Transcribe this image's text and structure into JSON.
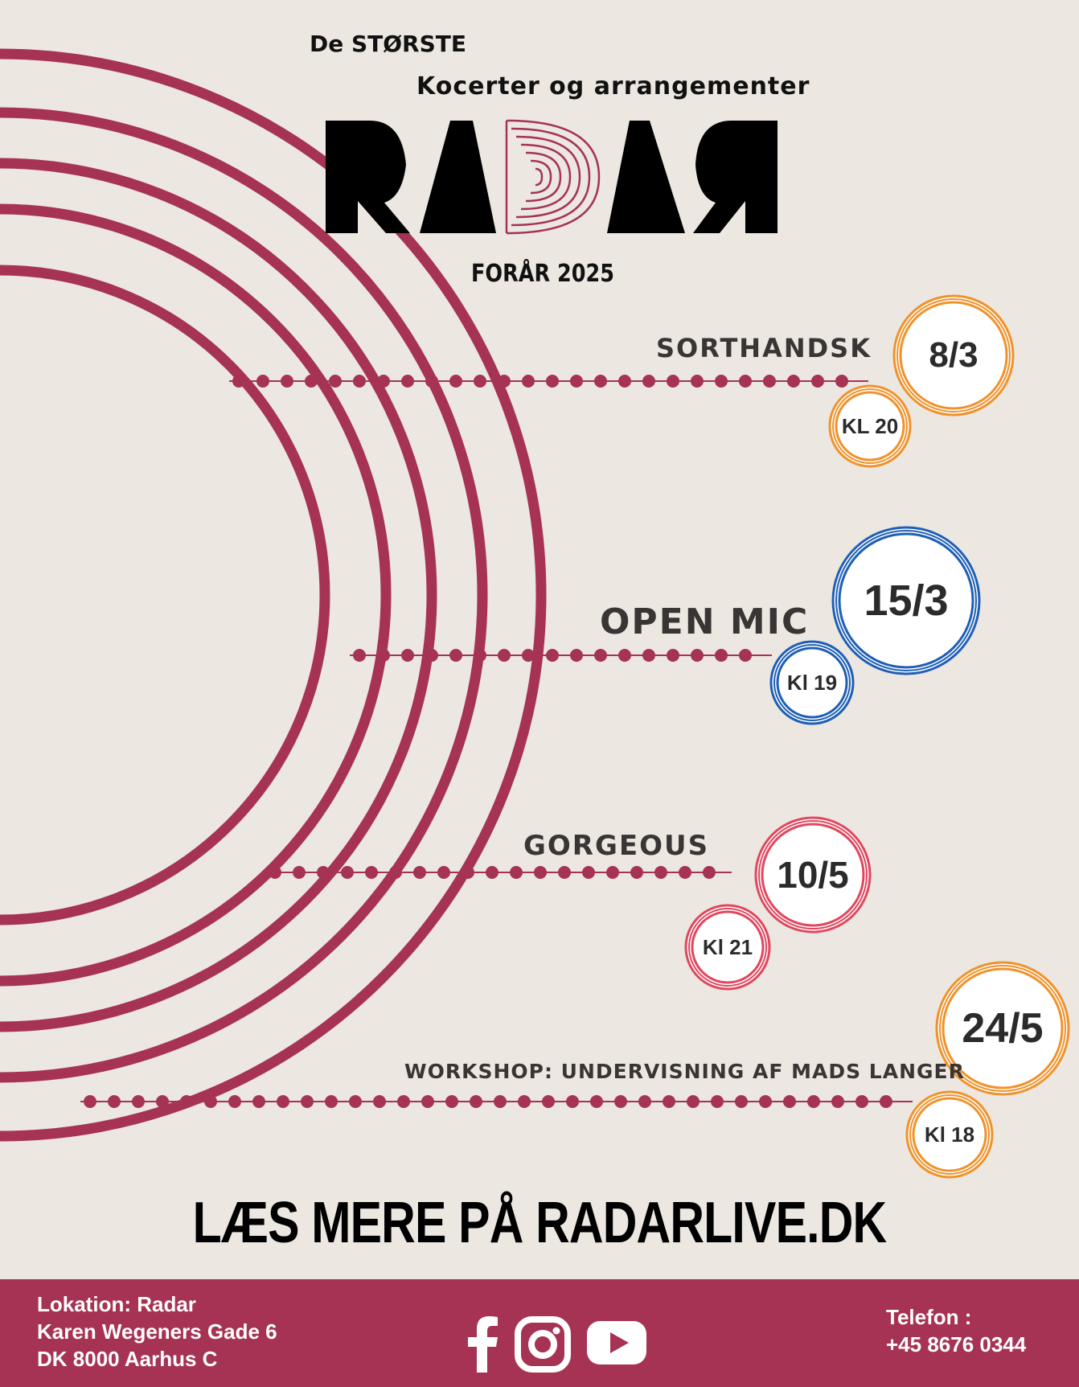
{
  "header": {
    "line1": "De STØRSTE",
    "line2": "Kocerter og arrangementer",
    "logo_text": "RADAR",
    "season": "FORÅR 2025"
  },
  "events": [
    {
      "title": "SORTHANDSK",
      "date": "8/3",
      "time": "KL 20",
      "color": "#f0922b"
    },
    {
      "title": "OPEN MIC",
      "date": "15/3",
      "time": "Kl 19",
      "color": "#1f5fb5"
    },
    {
      "title": "GORGEOUS",
      "date": "10/5",
      "time": "Kl 21",
      "color": "#e0475e"
    },
    {
      "title": "WORKSHOP: UNDERVISNING AF MADS LANGER",
      "date": "24/5",
      "time": "Kl 18",
      "color": "#f0922b"
    }
  ],
  "cta": "LÆS MERE PÅ RADARLIVE.DK",
  "footer": {
    "location_line1": "Lokation: Radar",
    "location_line2": "Karen Wegeners Gade 6",
    "location_line3": "DK 8000 Aarhus C",
    "phone_label": "Telefon :",
    "phone_number": "+45 8676 0344"
  },
  "social_icons": [
    "facebook-icon",
    "instagram-icon",
    "youtube-icon"
  ],
  "colors": {
    "accent": "#a63354",
    "background": "#ece7e1",
    "orange": "#f0922b",
    "blue": "#1f5fb5",
    "red": "#e0475e"
  }
}
